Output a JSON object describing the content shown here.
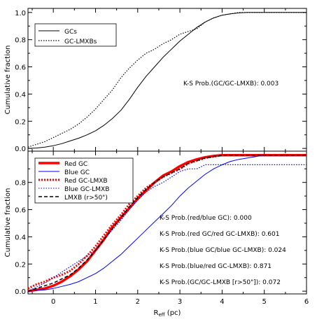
{
  "chart_data": [
    {
      "type": "line",
      "ylabel": "Cumulative fraction",
      "xlim": [
        -0.6,
        6
      ],
      "ylim": [
        -0.02,
        1.03
      ],
      "x_ticks": [
        "0",
        "1",
        "2",
        "3",
        "4",
        "5",
        "6"
      ],
      "y_ticks": [
        "0.0",
        "0.2",
        "0.4",
        "0.6",
        "0.8",
        "1.0"
      ],
      "legend_position": "top-left",
      "annotations": [
        "K-S Prob.(GC/GC-LMXB): 0.003"
      ],
      "series": [
        {
          "name": "GCs",
          "color": "#000000",
          "style": "solid",
          "x": [
            -0.6,
            -0.4,
            -0.2,
            0,
            0.2,
            0.4,
            0.6,
            0.8,
            1.0,
            1.2,
            1.4,
            1.6,
            1.8,
            2.0,
            2.2,
            2.4,
            2.6,
            2.8,
            3.0,
            3.2,
            3.4,
            3.6,
            3.8,
            4.0,
            4.2,
            4.4,
            4.6,
            4.8,
            5.0,
            5.5,
            6.0
          ],
          "y": [
            0.0,
            0.003,
            0.01,
            0.02,
            0.035,
            0.055,
            0.075,
            0.1,
            0.13,
            0.17,
            0.22,
            0.28,
            0.36,
            0.45,
            0.53,
            0.6,
            0.67,
            0.73,
            0.79,
            0.84,
            0.89,
            0.93,
            0.96,
            0.98,
            0.99,
            0.997,
            1.0,
            1.0,
            1.0,
            1.0,
            1.0
          ]
        },
        {
          "name": "GC-LMXBs",
          "color": "#000000",
          "style": "dotted",
          "x": [
            -0.6,
            -0.4,
            -0.2,
            0,
            0.2,
            0.4,
            0.6,
            0.8,
            1.0,
            1.2,
            1.4,
            1.6,
            1.8,
            2.0,
            2.2,
            2.4,
            2.6,
            2.8,
            3.0,
            3.2,
            3.4,
            3.6,
            3.8,
            4.0,
            4.2,
            4.4,
            4.6,
            4.8,
            5.0,
            5.5,
            6.0
          ],
          "y": [
            0.01,
            0.03,
            0.05,
            0.08,
            0.11,
            0.14,
            0.18,
            0.23,
            0.29,
            0.36,
            0.43,
            0.52,
            0.59,
            0.65,
            0.7,
            0.73,
            0.77,
            0.8,
            0.84,
            0.86,
            0.88,
            0.93,
            0.96,
            0.98,
            0.99,
            1.0,
            1.0,
            1.0,
            1.0,
            1.0,
            1.0
          ]
        }
      ]
    },
    {
      "type": "line",
      "xlabel": "R",
      "xlabel_sub": "eff",
      "xlabel_unit": " (pc)",
      "ylabel": "Cumulative fraction",
      "xlim": [
        -0.6,
        6
      ],
      "ylim": [
        -0.02,
        1.03
      ],
      "x_ticks": [
        "0",
        "1",
        "2",
        "3",
        "4",
        "5",
        "6"
      ],
      "y_ticks": [
        "0.0",
        "0.2",
        "0.4",
        "0.6",
        "0.8"
      ],
      "legend_position": "top-left",
      "annotations": [
        "K-S Prob.(red/blue GC): 0.000",
        "K-S Prob.(red GC/red GC-LMXB): 0.601",
        "K-S Prob.(blue GC/blue GC-LMXB): 0.024",
        "K-S Prob.(blue/red GC-LMXB): 0.871",
        "K-S Prob.(GC/GC-LMXB [r>50\"]): 0.072"
      ],
      "series": [
        {
          "name": "Red GC",
          "color": "#ff0000",
          "style": "thick",
          "x": [
            -0.6,
            -0.4,
            -0.2,
            0,
            0.2,
            0.4,
            0.6,
            0.8,
            1.0,
            1.2,
            1.4,
            1.6,
            1.8,
            2.0,
            2.2,
            2.4,
            2.6,
            2.8,
            3.0,
            3.2,
            3.4,
            3.6,
            3.8,
            4.0,
            4.2,
            4.4,
            4.6,
            4.8,
            5.0,
            5.5,
            6.0
          ],
          "y": [
            0.0,
            0.01,
            0.02,
            0.04,
            0.07,
            0.11,
            0.16,
            0.22,
            0.3,
            0.38,
            0.47,
            0.54,
            0.61,
            0.68,
            0.74,
            0.8,
            0.85,
            0.88,
            0.92,
            0.95,
            0.97,
            0.985,
            0.995,
            1.0,
            1.0,
            1.0,
            1.0,
            1.0,
            1.0,
            1.0,
            1.0
          ]
        },
        {
          "name": "Blue GC",
          "color": "#0000ff",
          "style": "solid",
          "x": [
            -0.6,
            -0.4,
            -0.2,
            0,
            0.2,
            0.4,
            0.6,
            0.8,
            1.0,
            1.2,
            1.4,
            1.6,
            1.8,
            2.0,
            2.2,
            2.4,
            2.6,
            2.8,
            3.0,
            3.2,
            3.4,
            3.6,
            3.8,
            4.0,
            4.2,
            4.4,
            4.6,
            4.8,
            5.0,
            5.5,
            6.0
          ],
          "y": [
            0.0,
            0.005,
            0.01,
            0.02,
            0.035,
            0.05,
            0.07,
            0.1,
            0.13,
            0.17,
            0.22,
            0.27,
            0.33,
            0.39,
            0.45,
            0.51,
            0.57,
            0.63,
            0.7,
            0.76,
            0.81,
            0.86,
            0.9,
            0.93,
            0.955,
            0.97,
            0.98,
            0.99,
            1.0,
            1.0,
            1.0
          ]
        },
        {
          "name": "Red GC-LMXB",
          "color": "#ff0000",
          "style": "dotted-thick",
          "x": [
            -0.6,
            -0.4,
            -0.2,
            0,
            0.2,
            0.4,
            0.6,
            0.8,
            1.0,
            1.2,
            1.4,
            1.6,
            1.8,
            2.0,
            2.2,
            2.4,
            2.6,
            2.8,
            3.0,
            3.2,
            3.4,
            3.6,
            3.8,
            4.0,
            4.2,
            4.4,
            4.6,
            4.8,
            5.0,
            5.5,
            6.0
          ],
          "y": [
            0.02,
            0.05,
            0.07,
            0.1,
            0.12,
            0.15,
            0.2,
            0.26,
            0.33,
            0.41,
            0.49,
            0.56,
            0.64,
            0.7,
            0.76,
            0.8,
            0.84,
            0.87,
            0.9,
            0.94,
            0.96,
            0.98,
            0.99,
            1.0,
            1.0,
            1.0,
            1.0,
            1.0,
            1.0,
            1.0,
            1.0
          ]
        },
        {
          "name": "Blue GC-LMXB",
          "color": "#0000ff",
          "style": "dotted",
          "x": [
            -0.6,
            -0.4,
            -0.2,
            0,
            0.2,
            0.4,
            0.6,
            0.8,
            1.0,
            1.2,
            1.4,
            1.6,
            1.8,
            2.0,
            2.2,
            2.4,
            2.6,
            2.8,
            3.0,
            3.2,
            3.4,
            3.6,
            3.8,
            4.0,
            4.2,
            4.4,
            4.6,
            4.8,
            5.0,
            5.5,
            6.0
          ],
          "y": [
            0.0,
            0.03,
            0.06,
            0.1,
            0.14,
            0.18,
            0.22,
            0.26,
            0.3,
            0.38,
            0.45,
            0.52,
            0.6,
            0.67,
            0.73,
            0.77,
            0.8,
            0.84,
            0.88,
            0.9,
            0.9,
            0.93,
            0.93,
            0.93,
            0.93,
            0.93,
            0.93,
            0.93,
            0.93,
            0.93,
            0.93
          ]
        },
        {
          "name": "LMXB (r>50\")",
          "color": "#000000",
          "style": "dashed",
          "x": [
            -0.6,
            -0.4,
            -0.2,
            0,
            0.2,
            0.4,
            0.6,
            0.8,
            1.0,
            1.2,
            1.4,
            1.6,
            1.8,
            2.0,
            2.2,
            2.4,
            2.6,
            2.8,
            3.0,
            3.2,
            3.4,
            3.6,
            3.8,
            4.0,
            4.2,
            4.4,
            4.6,
            4.8,
            5.0,
            5.5,
            6.0
          ],
          "y": [
            0.0,
            0.02,
            0.04,
            0.06,
            0.09,
            0.12,
            0.17,
            0.23,
            0.3,
            0.38,
            0.46,
            0.54,
            0.62,
            0.69,
            0.75,
            0.8,
            0.84,
            0.87,
            0.9,
            0.94,
            0.96,
            0.98,
            0.99,
            1.0,
            1.0,
            1.0,
            1.0,
            1.0,
            1.0,
            1.0,
            1.0
          ]
        }
      ]
    }
  ]
}
